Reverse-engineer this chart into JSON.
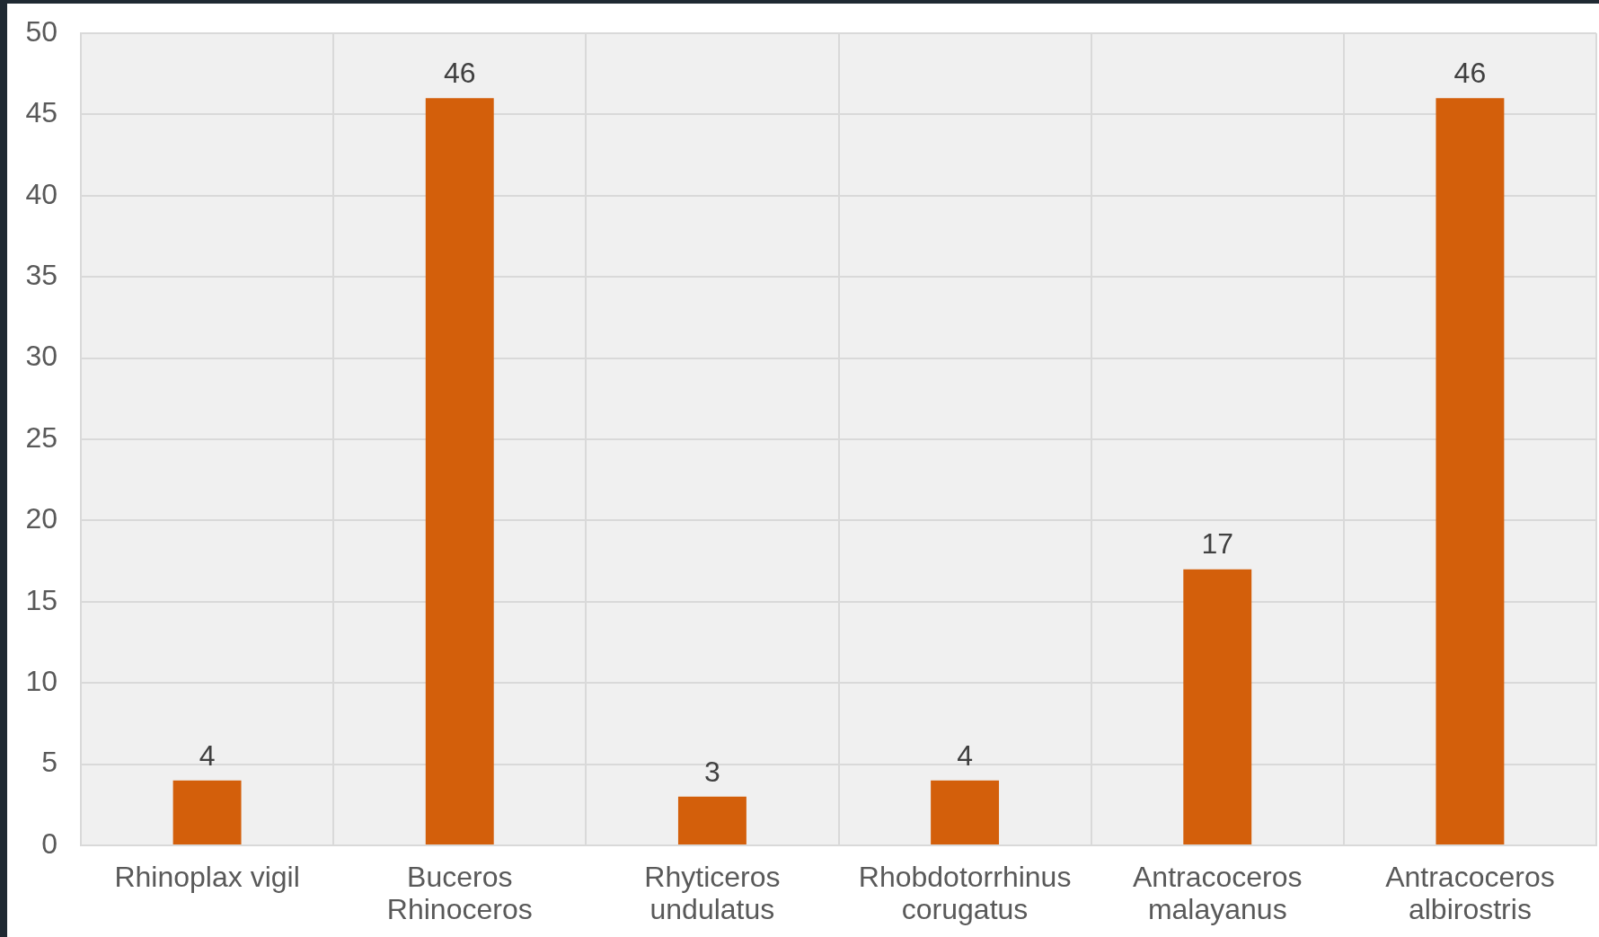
{
  "chart_data": {
    "type": "bar",
    "categories": [
      "Rhinoplax vigil",
      "Buceros Rhinoceros",
      "Rhyticeros undulatus",
      "Rhobdotorrhinus corugatus",
      "Antracoceros malayanus",
      "Antracoceros albirostris"
    ],
    "values": [
      4,
      46,
      3,
      4,
      17,
      46
    ],
    "color": "#d35f0b",
    "ylim": [
      0,
      50
    ],
    "yticks": [
      0,
      5,
      10,
      15,
      20,
      25,
      30,
      35,
      40,
      45,
      50
    ],
    "grid": true,
    "data_labels": true
  }
}
